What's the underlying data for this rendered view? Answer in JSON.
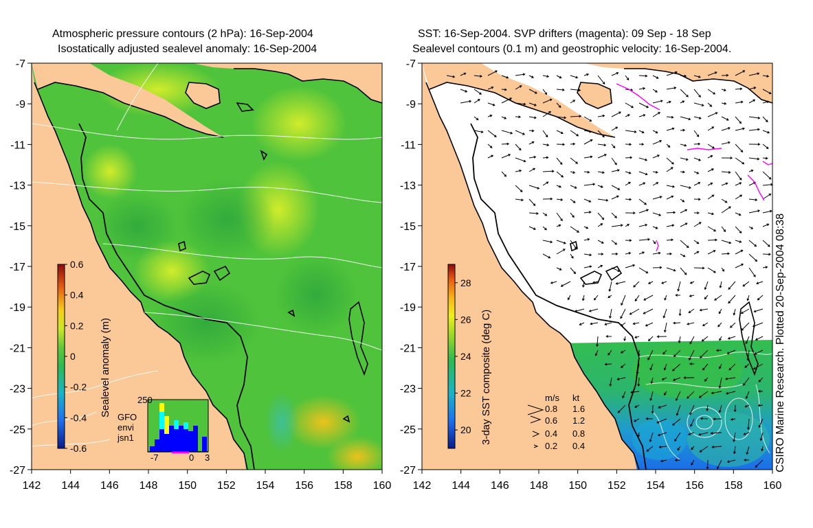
{
  "left_panel": {
    "title_lines": [
      "Atmospheric pressure contours (2 hPa): 16-Sep-2004",
      "Isostatically adjusted sealevel anomaly: 16-Sep-2004"
    ],
    "colorbar": {
      "label": "Sealevel anomaly (m)",
      "ticks": [
        "0.6",
        "0.4",
        "0.2",
        "0",
        "-0.2",
        "-0.4",
        "-0.6"
      ],
      "range": [
        -0.6,
        0.6
      ]
    },
    "histogram": {
      "ytick": "250",
      "xticks": [
        "-7",
        "0",
        "3"
      ],
      "legend": [
        {
          "name": "GFO",
          "color": "#ffff00"
        },
        {
          "name": "envi",
          "color": "#00ffff"
        },
        {
          "name": "jsn1",
          "color": "#0000ff"
        }
      ]
    }
  },
  "right_panel": {
    "title_lines": [
      "SST: 16-Sep-2004. SVP drifters (magenta): 09 Sep - 18 Sep",
      "Sealevel contours (0.1 m) and geostrophic velocity: 16-Sep-2004."
    ],
    "colorbar": {
      "label": "3-day SST composite (deg C)",
      "ticks": [
        "28",
        "26",
        "24",
        "22",
        "20"
      ],
      "range": [
        19,
        29
      ]
    },
    "velocity_legend": {
      "headers": [
        "m/s",
        "kt"
      ],
      "rows": [
        [
          "0.8",
          "1.6"
        ],
        [
          "0.6",
          "1.2"
        ],
        [
          "0.4",
          "0.8"
        ],
        [
          "0.2",
          "0.4"
        ]
      ]
    }
  },
  "axes": {
    "lon_ticks": [
      "142",
      "144",
      "146",
      "148",
      "150",
      "152",
      "154",
      "156",
      "158",
      "160"
    ],
    "lat_ticks": [
      "-7",
      "-9",
      "-11",
      "-13",
      "-15",
      "-17",
      "-19",
      "-21",
      "-23",
      "-25",
      "-27"
    ],
    "lon_range": [
      142,
      160
    ],
    "lat_range": [
      -27,
      -7
    ]
  },
  "colors": {
    "land": "#fbc897",
    "sea_green": "#4fc33b",
    "drifter": "#ff00ff"
  },
  "credit": "CSIRO Marine Research. Plotted 20-Sep-2004 08:38"
}
